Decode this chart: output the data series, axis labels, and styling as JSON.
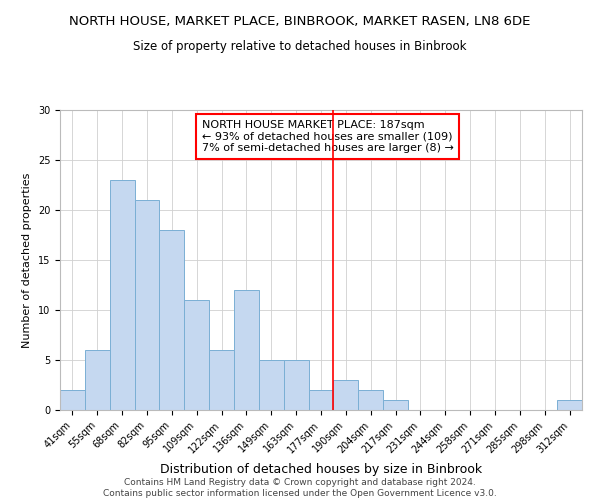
{
  "title": "NORTH HOUSE, MARKET PLACE, BINBROOK, MARKET RASEN, LN8 6DE",
  "subtitle": "Size of property relative to detached houses in Binbrook",
  "xlabel": "Distribution of detached houses by size in Binbrook",
  "ylabel": "Number of detached properties",
  "bin_labels": [
    "41sqm",
    "55sqm",
    "68sqm",
    "82sqm",
    "95sqm",
    "109sqm",
    "122sqm",
    "136sqm",
    "149sqm",
    "163sqm",
    "177sqm",
    "190sqm",
    "204sqm",
    "217sqm",
    "231sqm",
    "244sqm",
    "258sqm",
    "271sqm",
    "285sqm",
    "298sqm",
    "312sqm"
  ],
  "bar_heights": [
    2,
    6,
    23,
    21,
    18,
    11,
    6,
    12,
    5,
    5,
    2,
    3,
    2,
    1,
    0,
    0,
    0,
    0,
    0,
    0,
    1
  ],
  "bar_color": "#c5d8f0",
  "bar_edge_color": "#7aafd4",
  "vline_color": "red",
  "vline_x": 10.5,
  "annotation_text": "NORTH HOUSE MARKET PLACE: 187sqm\n← 93% of detached houses are smaller (109)\n7% of semi-detached houses are larger (8) →",
  "ylim": [
    0,
    30
  ],
  "yticks": [
    0,
    5,
    10,
    15,
    20,
    25,
    30
  ],
  "footer_text": "Contains HM Land Registry data © Crown copyright and database right 2024.\nContains public sector information licensed under the Open Government Licence v3.0.",
  "title_fontsize": 9.5,
  "subtitle_fontsize": 8.5,
  "xlabel_fontsize": 9,
  "ylabel_fontsize": 8,
  "tick_fontsize": 7,
  "annotation_fontsize": 8,
  "footer_fontsize": 6.5
}
